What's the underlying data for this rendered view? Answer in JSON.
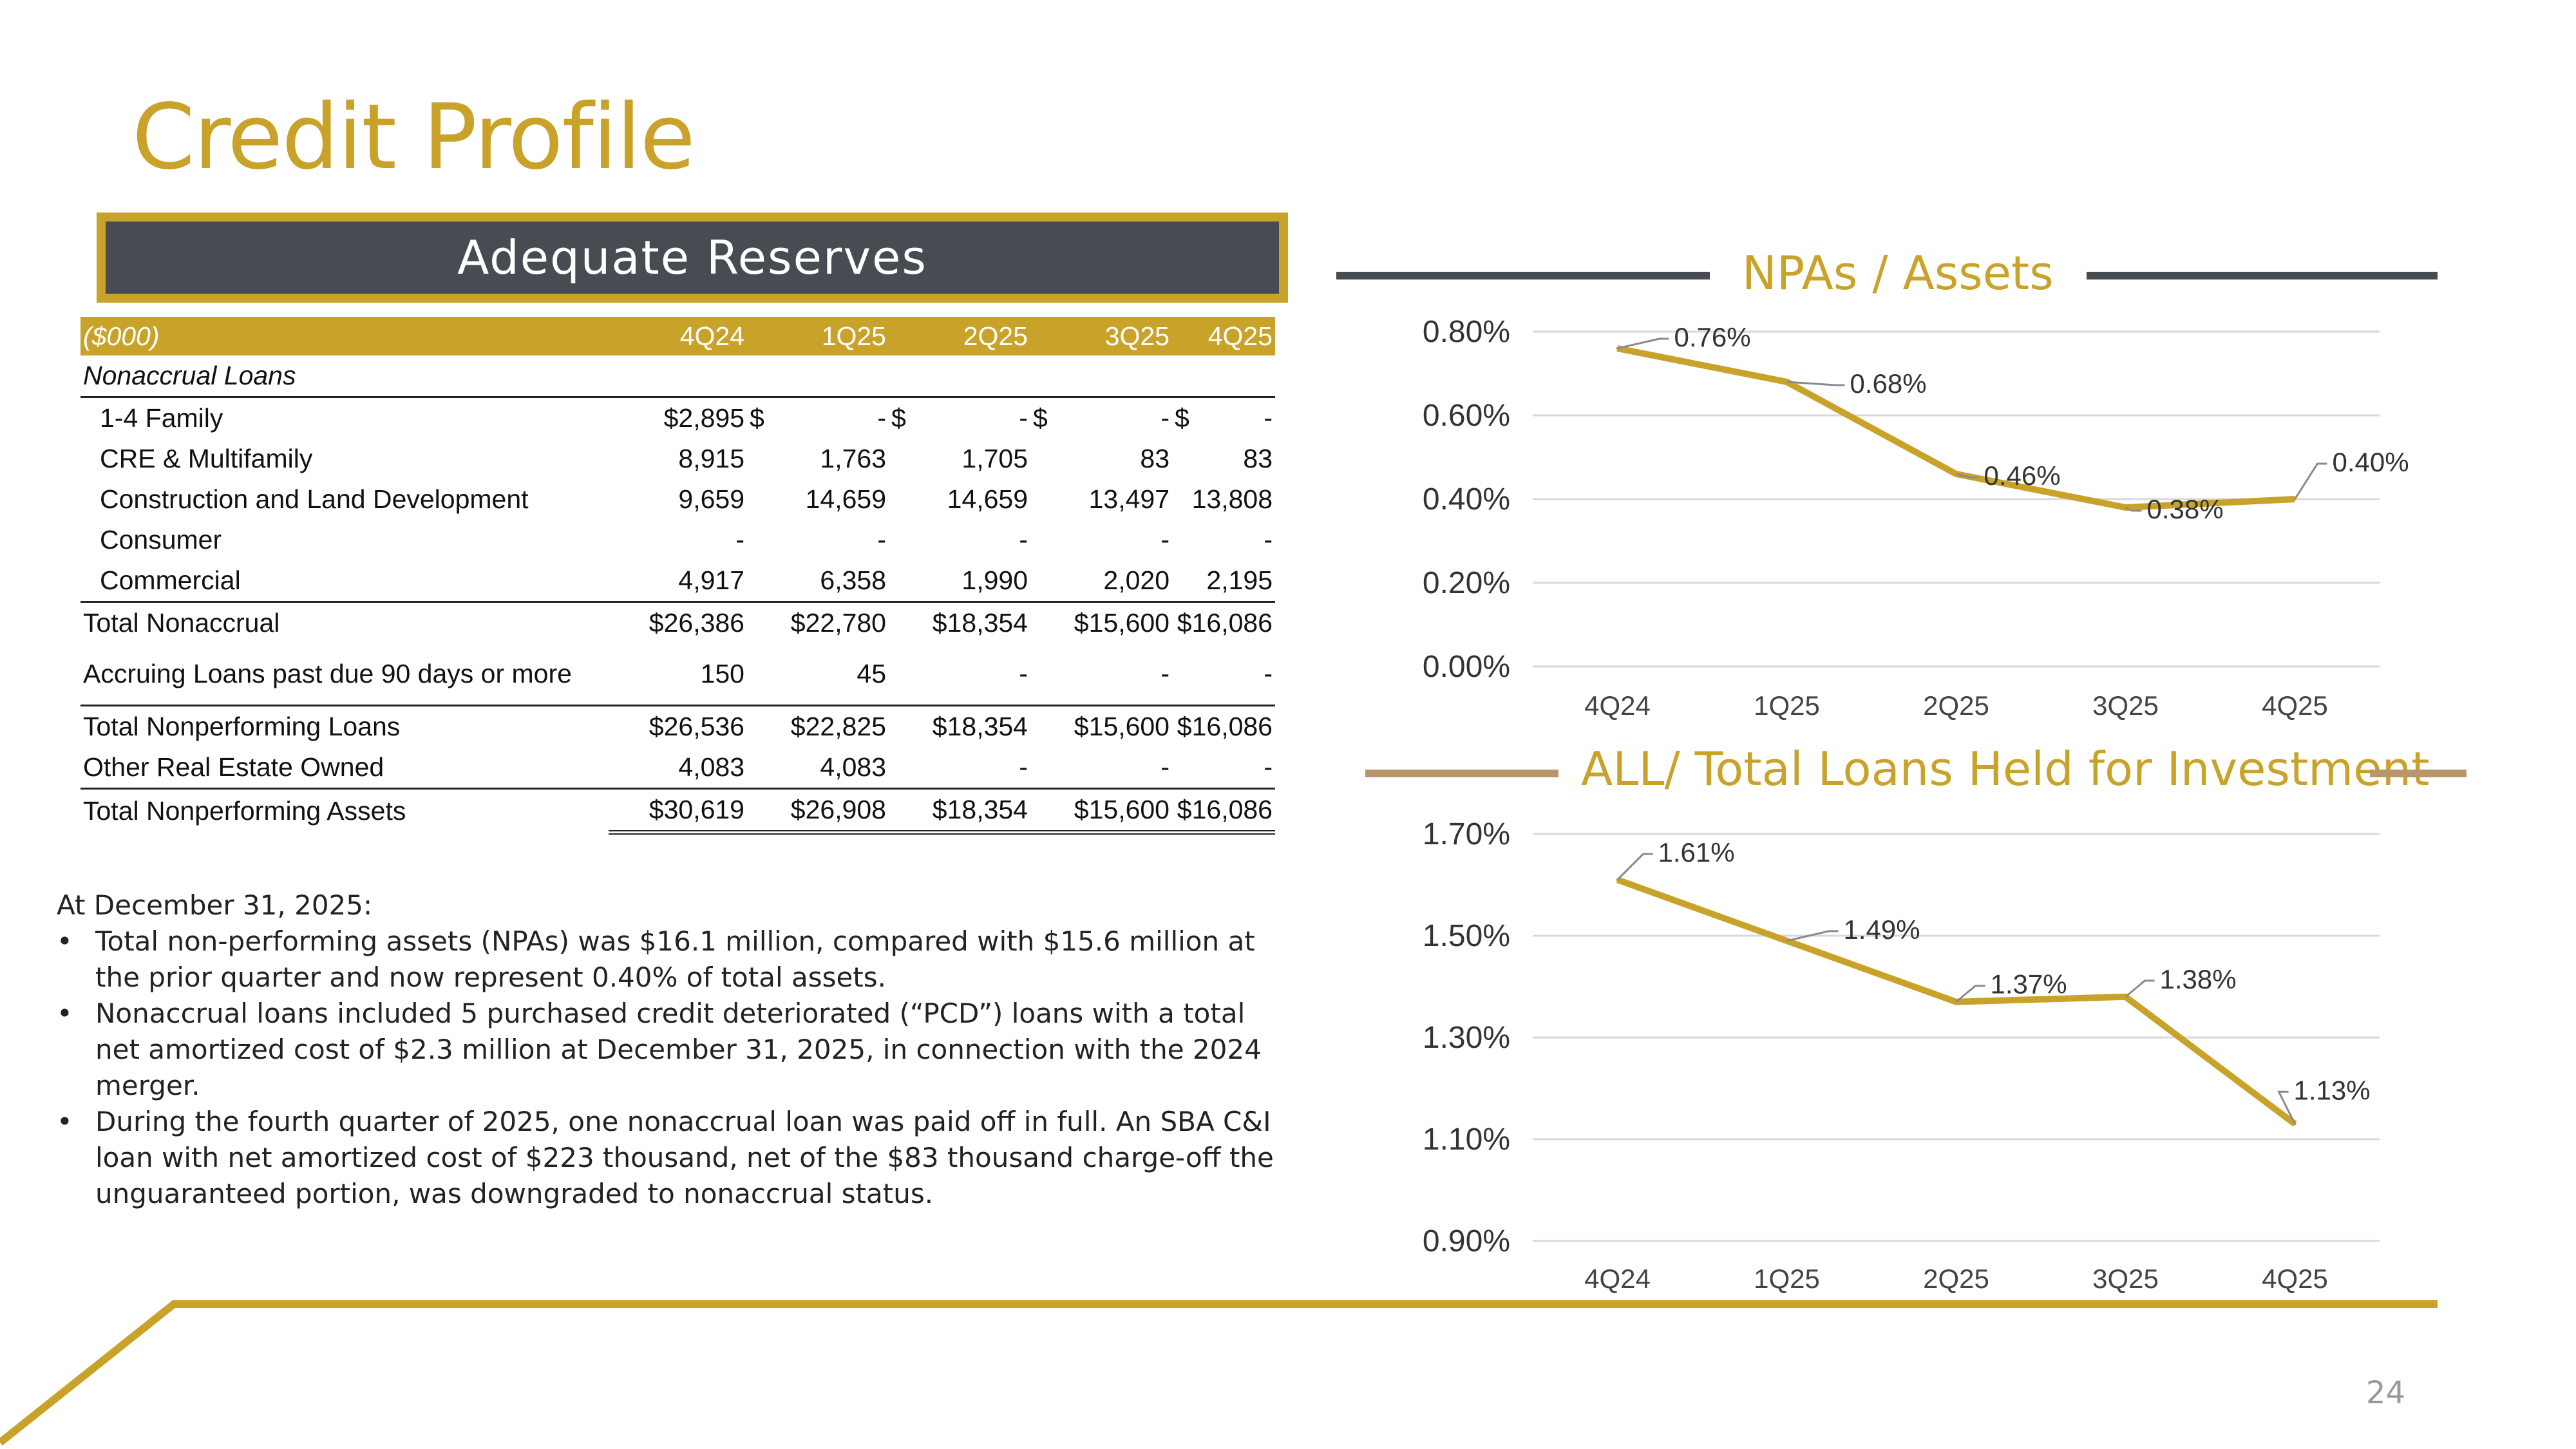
{
  "page": {
    "title": "Credit Profile",
    "page_number": "24"
  },
  "colors": {
    "gold": "#c9a22a",
    "dark": "#474b52",
    "tan": "#b8956a",
    "grid": "#d9d9d9"
  },
  "banner": {
    "label": "Adequate Reserves"
  },
  "table": {
    "header": {
      "unit": "($000)",
      "cols": [
        "4Q24",
        "1Q25",
        "2Q25",
        "3Q25",
        "4Q25"
      ]
    },
    "section_label": "Nonaccrual Loans",
    "rows": {
      "family": {
        "label": "1-4 Family",
        "v": [
          "$2,895",
          "$",
          "-",
          "$",
          "-",
          "$",
          "-",
          "$",
          "-"
        ]
      },
      "cre": {
        "label": "CRE & Multifamily",
        "v": [
          "8,915",
          "1,763",
          "1,705",
          "83",
          "83"
        ]
      },
      "construction": {
        "label": "Construction and Land Development",
        "v": [
          "9,659",
          "14,659",
          "14,659",
          "13,497",
          "13,808"
        ]
      },
      "consumer": {
        "label": "Consumer",
        "v": [
          "-",
          "-",
          "-",
          "-",
          "-"
        ]
      },
      "commercial": {
        "label": "Commercial",
        "v": [
          "4,917",
          "6,358",
          "1,990",
          "2,020",
          "2,195"
        ]
      },
      "total_nonaccrual": {
        "label": "Total Nonaccrual",
        "v": [
          "$26,386",
          "$22,780",
          "$18,354",
          "$15,600",
          "$16,086"
        ]
      },
      "accruing": {
        "label": "Accruing Loans past due 90 days or more",
        "v": [
          "150",
          "45",
          "-",
          "-",
          "-"
        ]
      },
      "total_npl": {
        "label": "Total Nonperforming Loans",
        "v": [
          "$26,536",
          "$22,825",
          "$18,354",
          "$15,600",
          "$16,086"
        ]
      },
      "oreo": {
        "label": "Other Real Estate Owned",
        "v": [
          "4,083",
          "4,083",
          "-",
          "-",
          "-"
        ]
      },
      "total_npa": {
        "label": "Total Nonperforming Assets",
        "v": [
          "$30,619",
          "$26,908",
          "$18,354",
          "$15,600",
          "$16,086"
        ]
      }
    }
  },
  "notes": {
    "intro": "At December 31, 2025:",
    "bullet_char": "•",
    "items": [
      "Total non-performing assets (NPAs) was $16.1 million, compared with $15.6 million at the prior quarter and now represent 0.40% of total assets.",
      "Nonaccrual loans included 5 purchased credit deteriorated (“PCD”) loans with a total net amortized cost of $2.3 million at December 31, 2025, in connection with the 2024 merger.",
      "During the fourth quarter of 2025, one nonaccrual loan was paid off in full. An SBA C&I loan with net amortized cost of $223 thousand, net of the $83 thousand charge-off the unguaranteed portion, was downgraded to nonaccrual status."
    ]
  },
  "chart_data": [
    {
      "type": "line",
      "title": "NPAs / Assets",
      "categories": [
        "4Q24",
        "1Q25",
        "2Q25",
        "3Q25",
        "4Q25"
      ],
      "values": [
        0.76,
        0.68,
        0.46,
        0.38,
        0.4
      ],
      "data_labels": [
        "0.76%",
        "0.68%",
        "0.46%",
        "0.38%",
        "0.40%"
      ],
      "y_ticks": [
        0.0,
        0.2,
        0.4,
        0.6,
        0.8
      ],
      "y_tick_labels": [
        "0.00%",
        "0.20%",
        "0.40%",
        "0.60%",
        "0.80%"
      ],
      "ylim": [
        0.0,
        0.8
      ],
      "grid": true
    },
    {
      "type": "line",
      "title": "ALL/ Total Loans Held for Investment",
      "categories": [
        "4Q24",
        "1Q25",
        "2Q25",
        "3Q25",
        "4Q25"
      ],
      "values": [
        1.61,
        1.49,
        1.37,
        1.38,
        1.13
      ],
      "data_labels": [
        "1.61%",
        "1.49%",
        "1.37%",
        "1.38%",
        "1.13%"
      ],
      "y_ticks": [
        0.9,
        1.1,
        1.3,
        1.5,
        1.7
      ],
      "y_tick_labels": [
        "0.90%",
        "1.10%",
        "1.30%",
        "1.50%",
        "1.70%"
      ],
      "ylim": [
        0.9,
        1.7
      ],
      "grid": true
    }
  ]
}
